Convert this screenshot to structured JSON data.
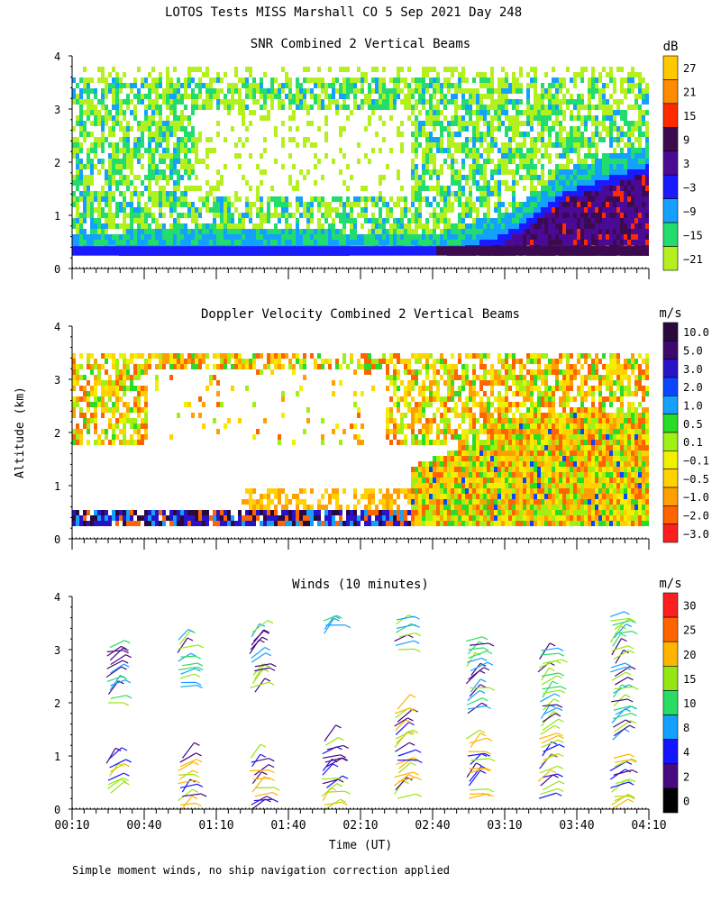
{
  "header": {
    "title": "LOTOS Tests MISS Marshall CO   5 Sep 2021 Day 248"
  },
  "footer": {
    "note": "Simple moment winds, no ship navigation correction applied"
  },
  "shared_axes": {
    "ylabel": "Altitude (km)",
    "xlabel": "Time (UT)",
    "x_ticks": [
      "00:10",
      "00:40",
      "01:10",
      "01:40",
      "02:10",
      "02:40",
      "03:10",
      "03:40",
      "04:10"
    ],
    "y_ticks": [
      "0",
      "1",
      "2",
      "3",
      "4"
    ]
  },
  "chart_data": [
    {
      "type": "heatmap",
      "title": "SNR Combined 2 Vertical Beams",
      "xlabel": "",
      "ylabel": "Altitude (km)",
      "x_range_minutes": [
        10,
        250
      ],
      "ylim": [
        0,
        4
      ],
      "colorbar": {
        "unit": "dB",
        "ticks": [
          "27",
          "21",
          "15",
          "9",
          "3",
          "−3",
          "−9",
          "−15",
          "−21"
        ],
        "colors": [
          "#ffc800",
          "#ff8c00",
          "#ff2a00",
          "#3c0a4e",
          "#4b0a96",
          "#1a1aff",
          "#14a0ff",
          "#22dc6e",
          "#b4f01e"
        ]
      },
      "description_fields": {
        "boundary_layer_top_km": [
          [
            10,
            0.4
          ],
          [
            60,
            0.5
          ],
          [
            120,
            0.45
          ],
          [
            160,
            0.35
          ],
          [
            190,
            0.8
          ],
          [
            215,
            1.6
          ],
          [
            250,
            2.1
          ]
        ],
        "cloud_layer_km": [
          1.5,
          3.8
        ]
      }
    },
    {
      "type": "heatmap",
      "title": "Doppler Velocity Combined 2 Vertical Beams",
      "xlabel": "",
      "ylabel": "Altitude (km)",
      "x_range_minutes": [
        10,
        250
      ],
      "ylim": [
        0,
        4
      ],
      "colorbar": {
        "unit": "m/s",
        "ticks": [
          "10.0",
          "5.0",
          "3.0",
          "2.0",
          "1.0",
          "0.5",
          "0.1",
          "−0.1",
          "−0.5",
          "−1.0",
          "−2.0",
          "−3.0"
        ],
        "colors": [
          "#2a0a3c",
          "#3c0a6e",
          "#2814c8",
          "#0a46ff",
          "#14a0ff",
          "#28dc28",
          "#a0f014",
          "#f0f000",
          "#ffd200",
          "#ffa000",
          "#ff6400",
          "#ff1e1e"
        ]
      }
    },
    {
      "type": "wind_barbs",
      "title": "Winds (10 minutes)",
      "xlabel": "Time (UT)",
      "ylabel": "Altitude (km)",
      "x_range_minutes": [
        10,
        250
      ],
      "ylim": [
        0,
        4
      ],
      "colorbar": {
        "unit": "m/s",
        "ticks": [
          "30",
          "25",
          "20",
          "15",
          "10",
          "8",
          "4",
          "2",
          "0"
        ],
        "colors": [
          "#ff1e1e",
          "#ff6400",
          "#ffb400",
          "#96e614",
          "#28dc64",
          "#14a0ff",
          "#1414ff",
          "#460a82",
          "#000000"
        ]
      },
      "profiles": [
        {
          "time_min": 25,
          "upper": [
            2.0,
            3.1
          ],
          "lower": [
            0.3,
            1.0
          ]
        },
        {
          "time_min": 55,
          "upper": [
            2.3,
            3.2
          ],
          "lower": [
            0.0,
            1.0
          ]
        },
        {
          "time_min": 85,
          "upper": [
            2.2,
            3.4
          ],
          "lower": [
            0.0,
            1.0
          ]
        },
        {
          "time_min": 115,
          "upper": [
            3.3,
            3.6
          ],
          "lower": [
            0.0,
            1.3
          ]
        },
        {
          "time_min": 145,
          "upper": [
            3.0,
            3.6
          ],
          "lower": [
            0.2,
            1.9
          ]
        },
        {
          "time_min": 175,
          "upper": [
            1.8,
            3.2
          ],
          "lower": [
            0.2,
            1.4
          ]
        },
        {
          "time_min": 205,
          "upper": [
            1.7,
            3.0
          ],
          "lower": [
            0.2,
            1.7
          ]
        },
        {
          "time_min": 235,
          "upper": [
            1.3,
            3.7
          ],
          "lower": [
            0.0,
            1.0
          ]
        }
      ]
    }
  ]
}
